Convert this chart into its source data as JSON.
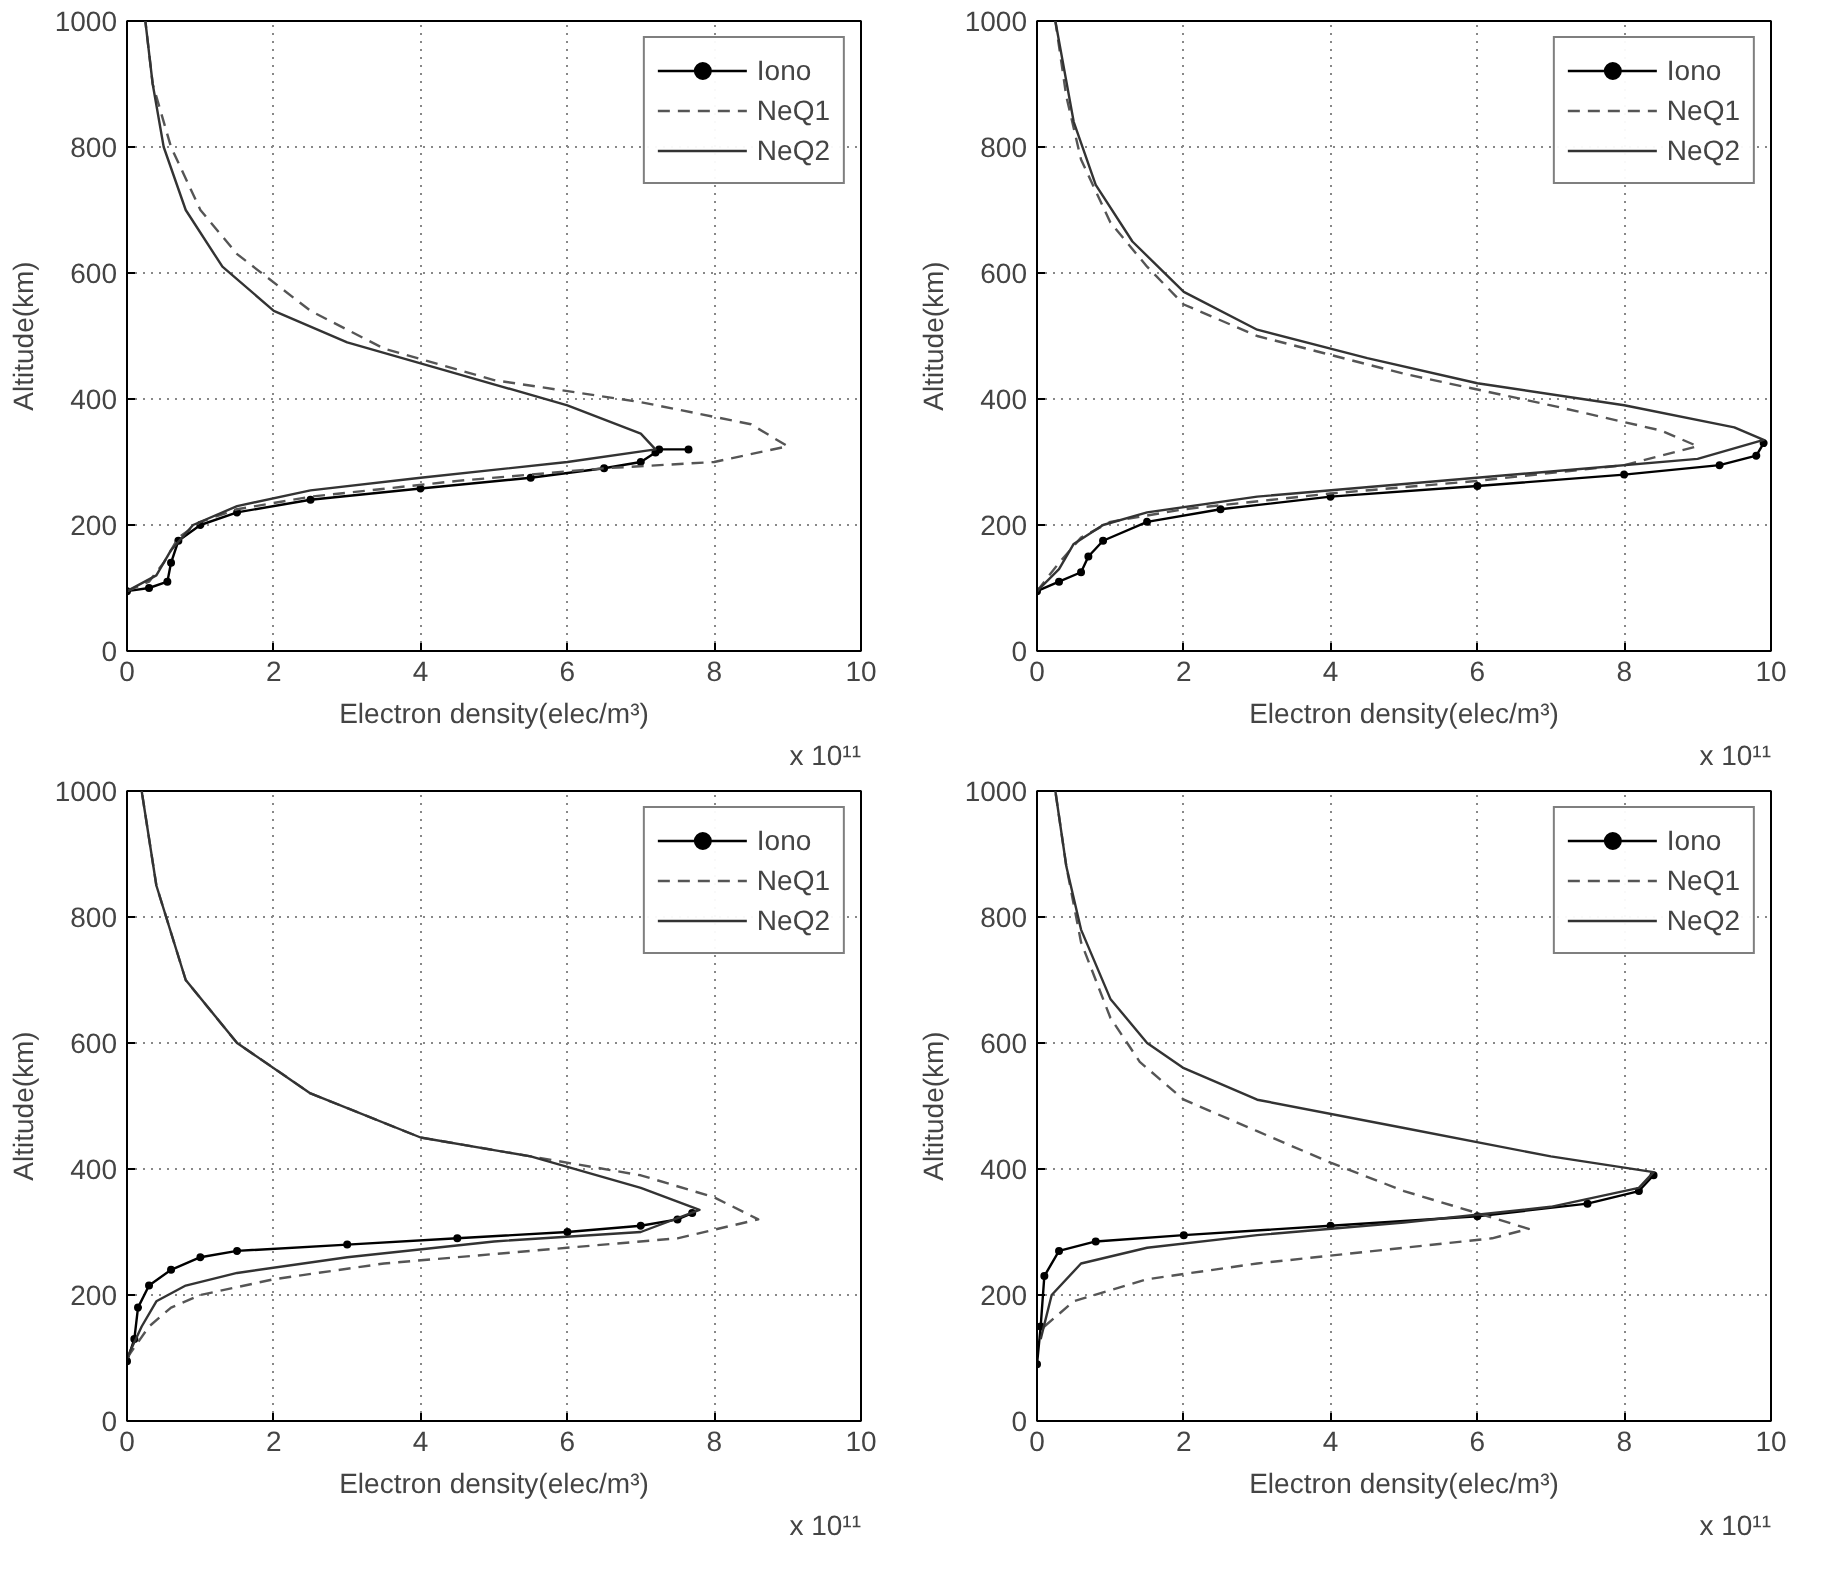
{
  "chart_data": [
    {
      "type": "line",
      "xlabel": "Electron density(elec/m³)",
      "ylabel": "Altitude(km)",
      "annotations": [
        "x 10¹¹"
      ],
      "xlim": [
        0,
        10
      ],
      "xticks": [
        0,
        2,
        4,
        6,
        8,
        10
      ],
      "ylim": [
        0,
        1000
      ],
      "yticks": [
        0,
        200,
        400,
        600,
        800,
        1000
      ],
      "grid": true,
      "legend": "top right",
      "series": [
        {
          "name": "Iono",
          "color": "#000000",
          "marker": "circle",
          "line_style": "solid",
          "x": [
            0.0,
            0.3,
            0.55,
            0.6,
            0.7,
            1.0,
            1.5,
            2.5,
            4,
            5.5,
            6.5,
            7.0,
            7.2,
            7.25,
            7.65
          ],
          "values": [
            95,
            100,
            110,
            140,
            175,
            200,
            220,
            240,
            258,
            275,
            290,
            300,
            315,
            320,
            320
          ]
        },
        {
          "name": "NeQ1",
          "color": "#555555",
          "marker": "none",
          "line_style": "dashed",
          "x": [
            0.0,
            0.3,
            0.5,
            0.7,
            1.0,
            1.5,
            2.5,
            4.5,
            6.5,
            8,
            9.0,
            8.5,
            7,
            5,
            3.5,
            2.5,
            1.5,
            1.0,
            0.6,
            0.35,
            0.25
          ],
          "values": [
            95,
            110,
            140,
            180,
            205,
            225,
            245,
            270,
            290,
            300,
            325,
            360,
            395,
            430,
            480,
            540,
            630,
            700,
            800,
            900,
            1000
          ]
        },
        {
          "name": "NeQ2",
          "color": "#333333",
          "marker": "none",
          "line_style": "solid",
          "x": [
            0.0,
            0.4,
            0.6,
            0.9,
            1.5,
            2.5,
            4,
            6,
            7.2,
            7.0,
            6,
            4.5,
            3,
            2,
            1.3,
            0.8,
            0.5,
            0.35,
            0.25
          ],
          "values": [
            95,
            120,
            160,
            200,
            230,
            255,
            275,
            300,
            320,
            345,
            390,
            440,
            490,
            540,
            610,
            700,
            800,
            900,
            1000
          ]
        }
      ]
    },
    {
      "type": "line",
      "xlabel": "Electron density(elec/m³)",
      "ylabel": "Altitude(km)",
      "annotations": [
        "x 10¹¹"
      ],
      "xlim": [
        0,
        10
      ],
      "xticks": [
        0,
        2,
        4,
        6,
        8,
        10
      ],
      "ylim": [
        0,
        1000
      ],
      "yticks": [
        0,
        200,
        400,
        600,
        800,
        1000
      ],
      "grid": true,
      "legend": "top right",
      "series": [
        {
          "name": "Iono",
          "color": "#000000",
          "marker": "circle",
          "line_style": "solid",
          "x": [
            0,
            0.3,
            0.6,
            0.7,
            0.9,
            1.5,
            2.5,
            4,
            6,
            8,
            9.3,
            9.8,
            9.9
          ],
          "values": [
            95,
            110,
            125,
            150,
            175,
            205,
            225,
            245,
            262,
            280,
            295,
            310,
            330
          ]
        },
        {
          "name": "NeQ1",
          "color": "#555555",
          "marker": "none",
          "line_style": "dashed",
          "x": [
            0,
            0.3,
            0.6,
            1.0,
            2,
            4,
            6,
            8,
            9.0,
            8.5,
            7,
            5,
            3,
            2,
            1.5,
            1.0,
            0.6,
            0.4,
            0.25
          ],
          "values": [
            95,
            140,
            180,
            205,
            225,
            250,
            270,
            295,
            325,
            350,
            390,
            440,
            500,
            550,
            610,
            680,
            780,
            880,
            1000
          ]
        },
        {
          "name": "NeQ2",
          "color": "#333333",
          "marker": "none",
          "line_style": "solid",
          "x": [
            0,
            0.3,
            0.5,
            0.9,
            1.5,
            3,
            5,
            7,
            9,
            9.9,
            9.5,
            8,
            6,
            4.5,
            3,
            2,
            1.3,
            0.8,
            0.5,
            0.25
          ],
          "values": [
            95,
            130,
            170,
            200,
            220,
            245,
            265,
            285,
            305,
            335,
            355,
            390,
            425,
            465,
            510,
            570,
            650,
            740,
            840,
            1000
          ]
        }
      ]
    },
    {
      "type": "line",
      "xlabel": "Electron density(elec/m³)",
      "ylabel": "Altitude(km)",
      "annotations": [
        "x 10¹¹"
      ],
      "xlim": [
        0,
        10
      ],
      "xticks": [
        0,
        2,
        4,
        6,
        8,
        10
      ],
      "ylim": [
        0,
        1000
      ],
      "yticks": [
        0,
        200,
        400,
        600,
        800,
        1000
      ],
      "grid": true,
      "legend": "top right",
      "series": [
        {
          "name": "Iono",
          "color": "#000000",
          "marker": "circle",
          "line_style": "solid",
          "x": [
            0,
            0.1,
            0.15,
            0.3,
            0.6,
            1,
            1.5,
            3,
            4.5,
            6,
            7,
            7.5,
            7.7
          ],
          "values": [
            95,
            130,
            180,
            215,
            240,
            260,
            270,
            280,
            290,
            300,
            310,
            320,
            330
          ]
        },
        {
          "name": "NeQ1",
          "color": "#555555",
          "marker": "none",
          "line_style": "dashed",
          "x": [
            0,
            0.3,
            0.6,
            1,
            2,
            3.5,
            5.5,
            7.5,
            8.6,
            8,
            7,
            5.5,
            4,
            2.5,
            1.5,
            0.8,
            0.4,
            0.2
          ],
          "values": [
            100,
            150,
            180,
            200,
            225,
            250,
            270,
            290,
            320,
            355,
            390,
            420,
            450,
            520,
            600,
            700,
            850,
            1000
          ]
        },
        {
          "name": "NeQ2",
          "color": "#333333",
          "marker": "none",
          "line_style": "solid",
          "x": [
            0,
            0.2,
            0.4,
            0.8,
            1.5,
            3,
            5,
            7,
            7.8,
            7,
            5.5,
            4,
            2.5,
            1.5,
            0.8,
            0.4,
            0.2
          ],
          "values": [
            100,
            150,
            190,
            215,
            235,
            260,
            285,
            300,
            335,
            370,
            420,
            450,
            520,
            600,
            700,
            850,
            1000
          ]
        }
      ]
    },
    {
      "type": "line",
      "xlabel": "Electron density(elec/m³)",
      "ylabel": "Altitude(km)",
      "annotations": [
        "x 10¹¹"
      ],
      "xlim": [
        0,
        10
      ],
      "xticks": [
        0,
        2,
        4,
        6,
        8,
        10
      ],
      "ylim": [
        0,
        1000
      ],
      "yticks": [
        0,
        200,
        400,
        600,
        800,
        1000
      ],
      "grid": true,
      "legend": "top right",
      "series": [
        {
          "name": "Iono",
          "color": "#000000",
          "marker": "circle",
          "line_style": "solid",
          "x": [
            0,
            0.05,
            0.1,
            0.3,
            0.8,
            2,
            4,
            6,
            7.5,
            8.2,
            8.4
          ],
          "values": [
            90,
            150,
            230,
            270,
            285,
            295,
            310,
            325,
            345,
            365,
            390
          ]
        },
        {
          "name": "NeQ1",
          "color": "#555555",
          "marker": "none",
          "line_style": "dashed",
          "x": [
            0.1,
            0.5,
            1.5,
            3,
            5,
            6.2,
            6.7,
            6,
            5,
            4,
            3,
            2,
            1.4,
            1,
            0.6,
            0.4,
            0.25
          ],
          "values": [
            150,
            190,
            225,
            250,
            275,
            290,
            305,
            330,
            365,
            410,
            460,
            510,
            570,
            640,
            760,
            880,
            1000
          ]
        },
        {
          "name": "NeQ2",
          "color": "#333333",
          "marker": "none",
          "line_style": "solid",
          "x": [
            0.05,
            0.2,
            0.6,
            1.5,
            3,
            5,
            7,
            8.2,
            8.4,
            7,
            5,
            3,
            2,
            1.5,
            1,
            0.6,
            0.4,
            0.25
          ],
          "values": [
            130,
            200,
            250,
            275,
            295,
            315,
            340,
            370,
            395,
            420,
            465,
            510,
            560,
            600,
            670,
            780,
            880,
            1000
          ]
        }
      ]
    }
  ]
}
